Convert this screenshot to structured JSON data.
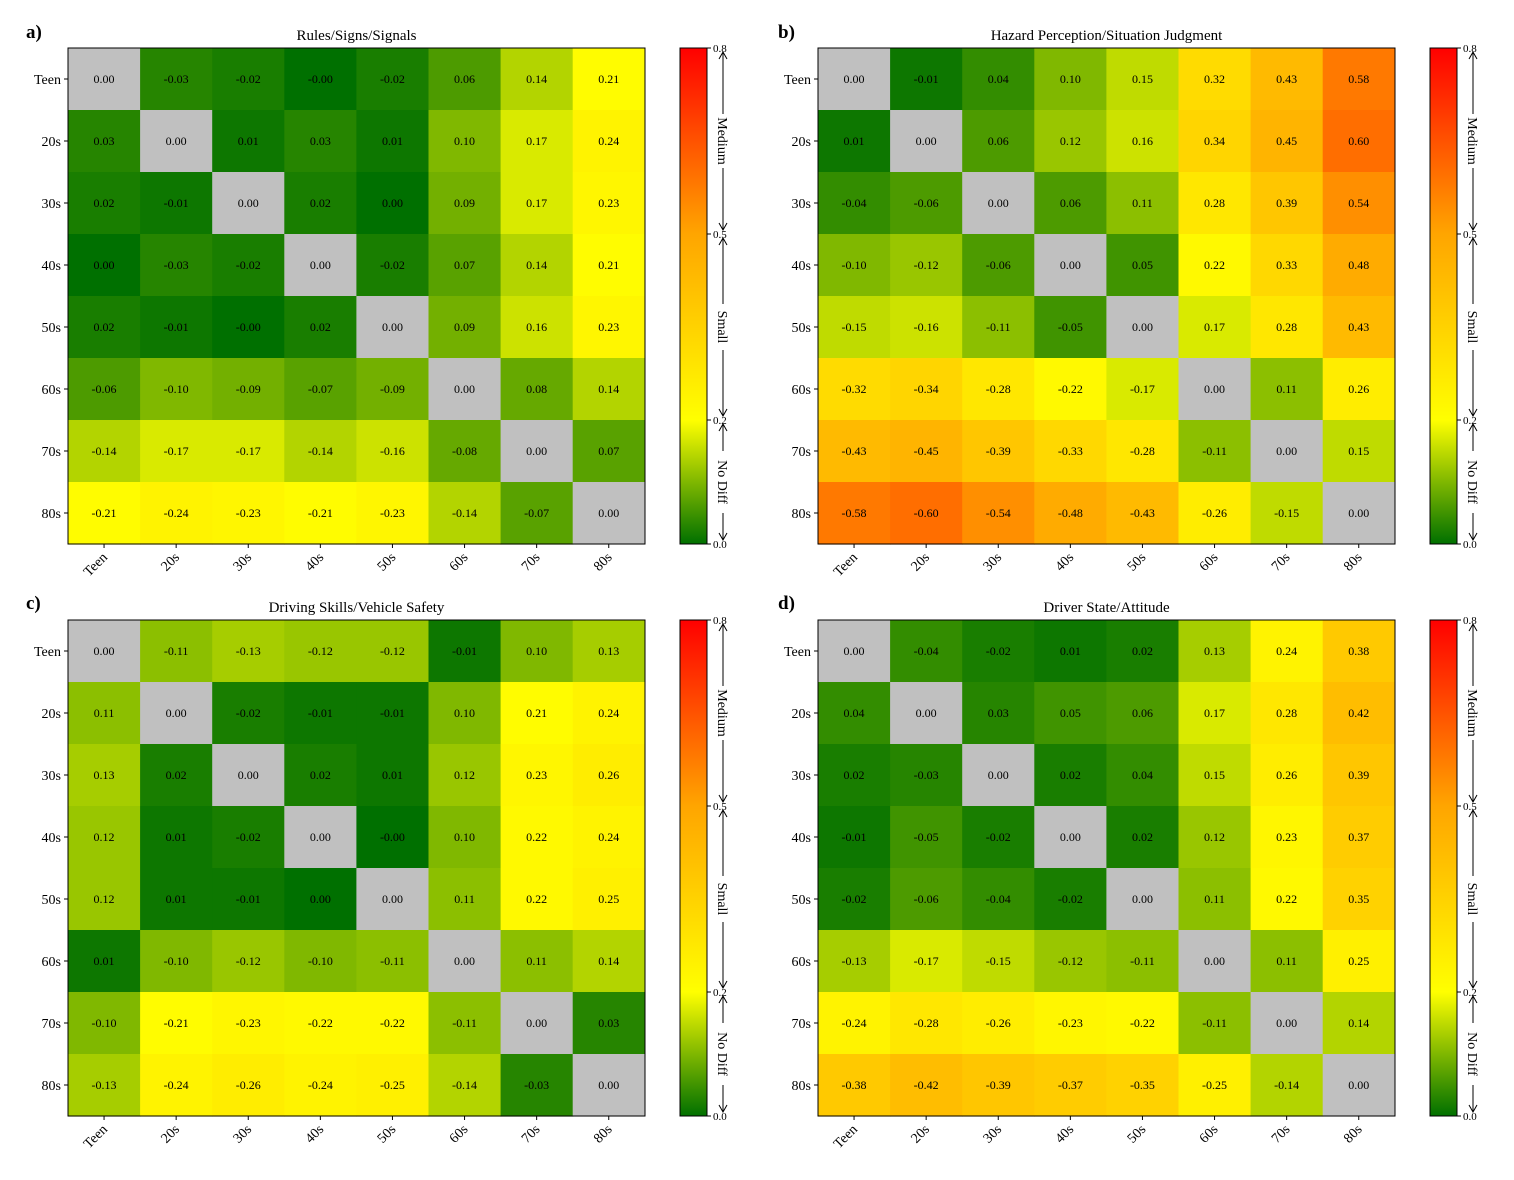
{
  "chart_data": [
    {
      "panel_label": "a)",
      "type": "heatmap",
      "title": "Rules/Signs/Signals",
      "rows": [
        "Teen",
        "20s",
        "30s",
        "40s",
        "50s",
        "60s",
        "70s",
        "80s"
      ],
      "columns": [
        "Teen",
        "20s",
        "30s",
        "40s",
        "50s",
        "60s",
        "70s",
        "80s"
      ],
      "values": [
        [
          "0.00",
          "-0.03",
          "-0.02",
          "-0.00",
          "-0.02",
          "0.06",
          "0.14",
          "0.21"
        ],
        [
          "0.03",
          "0.00",
          "0.01",
          "0.03",
          "0.01",
          "0.10",
          "0.17",
          "0.24"
        ],
        [
          "0.02",
          "-0.01",
          "0.00",
          "0.02",
          "0.00",
          "0.09",
          "0.17",
          "0.23"
        ],
        [
          "0.00",
          "-0.03",
          "-0.02",
          "0.00",
          "-0.02",
          "0.07",
          "0.14",
          "0.21"
        ],
        [
          "0.02",
          "-0.01",
          "-0.00",
          "0.02",
          "0.00",
          "0.09",
          "0.16",
          "0.23"
        ],
        [
          "-0.06",
          "-0.10",
          "-0.09",
          "-0.07",
          "-0.09",
          "0.00",
          "0.08",
          "0.14"
        ],
        [
          "-0.14",
          "-0.17",
          "-0.17",
          "-0.14",
          "-0.16",
          "-0.08",
          "0.00",
          "0.07"
        ],
        [
          "-0.21",
          "-0.24",
          "-0.23",
          "-0.21",
          "-0.23",
          "-0.14",
          "-0.07",
          "0.00"
        ]
      ]
    },
    {
      "panel_label": "b)",
      "type": "heatmap",
      "title": "Hazard Perception/Situation Judgment",
      "rows": [
        "Teen",
        "20s",
        "30s",
        "40s",
        "50s",
        "60s",
        "70s",
        "80s"
      ],
      "columns": [
        "Teen",
        "20s",
        "30s",
        "40s",
        "50s",
        "60s",
        "70s",
        "80s"
      ],
      "values": [
        [
          "0.00",
          "-0.01",
          "0.04",
          "0.10",
          "0.15",
          "0.32",
          "0.43",
          "0.58"
        ],
        [
          "0.01",
          "0.00",
          "0.06",
          "0.12",
          "0.16",
          "0.34",
          "0.45",
          "0.60"
        ],
        [
          "-0.04",
          "-0.06",
          "0.00",
          "0.06",
          "0.11",
          "0.28",
          "0.39",
          "0.54"
        ],
        [
          "-0.10",
          "-0.12",
          "-0.06",
          "0.00",
          "0.05",
          "0.22",
          "0.33",
          "0.48"
        ],
        [
          "-0.15",
          "-0.16",
          "-0.11",
          "-0.05",
          "0.00",
          "0.17",
          "0.28",
          "0.43"
        ],
        [
          "-0.32",
          "-0.34",
          "-0.28",
          "-0.22",
          "-0.17",
          "0.00",
          "0.11",
          "0.26"
        ],
        [
          "-0.43",
          "-0.45",
          "-0.39",
          "-0.33",
          "-0.28",
          "-0.11",
          "0.00",
          "0.15"
        ],
        [
          "-0.58",
          "-0.60",
          "-0.54",
          "-0.48",
          "-0.43",
          "-0.26",
          "-0.15",
          "0.00"
        ]
      ]
    },
    {
      "panel_label": "c)",
      "type": "heatmap",
      "title": "Driving Skills/Vehicle Safety",
      "rows": [
        "Teen",
        "20s",
        "30s",
        "40s",
        "50s",
        "60s",
        "70s",
        "80s"
      ],
      "columns": [
        "Teen",
        "20s",
        "30s",
        "40s",
        "50s",
        "60s",
        "70s",
        "80s"
      ],
      "values": [
        [
          "0.00",
          "-0.11",
          "-0.13",
          "-0.12",
          "-0.12",
          "-0.01",
          "0.10",
          "0.13"
        ],
        [
          "0.11",
          "0.00",
          "-0.02",
          "-0.01",
          "-0.01",
          "0.10",
          "0.21",
          "0.24"
        ],
        [
          "0.13",
          "0.02",
          "0.00",
          "0.02",
          "0.01",
          "0.12",
          "0.23",
          "0.26"
        ],
        [
          "0.12",
          "0.01",
          "-0.02",
          "0.00",
          "-0.00",
          "0.10",
          "0.22",
          "0.24"
        ],
        [
          "0.12",
          "0.01",
          "-0.01",
          "0.00",
          "0.00",
          "0.11",
          "0.22",
          "0.25"
        ],
        [
          "0.01",
          "-0.10",
          "-0.12",
          "-0.10",
          "-0.11",
          "0.00",
          "0.11",
          "0.14"
        ],
        [
          "-0.10",
          "-0.21",
          "-0.23",
          "-0.22",
          "-0.22",
          "-0.11",
          "0.00",
          "0.03"
        ],
        [
          "-0.13",
          "-0.24",
          "-0.26",
          "-0.24",
          "-0.25",
          "-0.14",
          "-0.03",
          "0.00"
        ]
      ]
    },
    {
      "panel_label": "d)",
      "type": "heatmap",
      "title": "Driver State/Attitude",
      "rows": [
        "Teen",
        "20s",
        "30s",
        "40s",
        "50s",
        "60s",
        "70s",
        "80s"
      ],
      "columns": [
        "Teen",
        "20s",
        "30s",
        "40s",
        "50s",
        "60s",
        "70s",
        "80s"
      ],
      "values": [
        [
          "0.00",
          "-0.04",
          "-0.02",
          "0.01",
          "0.02",
          "0.13",
          "0.24",
          "0.38"
        ],
        [
          "0.04",
          "0.00",
          "0.03",
          "0.05",
          "0.06",
          "0.17",
          "0.28",
          "0.42"
        ],
        [
          "0.02",
          "-0.03",
          "0.00",
          "0.02",
          "0.04",
          "0.15",
          "0.26",
          "0.39"
        ],
        [
          "-0.01",
          "-0.05",
          "-0.02",
          "0.00",
          "0.02",
          "0.12",
          "0.23",
          "0.37"
        ],
        [
          "-0.02",
          "-0.06",
          "-0.04",
          "-0.02",
          "0.00",
          "0.11",
          "0.22",
          "0.35"
        ],
        [
          "-0.13",
          "-0.17",
          "-0.15",
          "-0.12",
          "-0.11",
          "0.00",
          "0.11",
          "0.25"
        ],
        [
          "-0.24",
          "-0.28",
          "-0.26",
          "-0.23",
          "-0.22",
          "-0.11",
          "0.00",
          "0.14"
        ],
        [
          "-0.38",
          "-0.42",
          "-0.39",
          "-0.37",
          "-0.35",
          "-0.25",
          "-0.14",
          "0.00"
        ]
      ]
    }
  ],
  "colorbar": {
    "range": [
      0.0,
      0.8
    ],
    "tick_labels": [
      "0.0",
      "0.2",
      "0.5",
      "0.8"
    ],
    "tick_values": [
      0.0,
      0.2,
      0.5,
      0.8
    ],
    "bands": [
      {
        "label": "No Diff",
        "from": 0.0,
        "to": 0.2
      },
      {
        "label": "Small",
        "from": 0.2,
        "to": 0.5
      },
      {
        "label": "Medium",
        "from": 0.5,
        "to": 0.8
      }
    ],
    "colors": [
      "#007000",
      "#ffff00",
      "#ffa500",
      "#ff0000"
    ],
    "diagonal_color": "#c0c0c0"
  }
}
